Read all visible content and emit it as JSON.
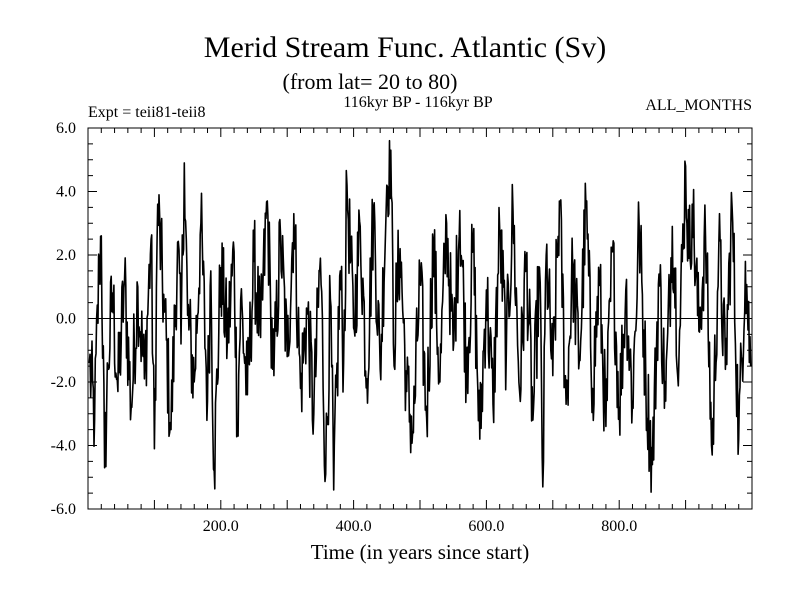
{
  "chart_data": {
    "type": "line",
    "title": "Merid Stream Func. Atlantic (Sv)",
    "subtitle": "(from lat= 20 to 80)",
    "left_label": "Expt = teii81-teii8",
    "center_label": "116kyr BP - 116kyr BP",
    "right_label": "ALL_MONTHS",
    "xlabel": "Time (in years since start)",
    "ylabel": "",
    "xlim": [
      0,
      1000
    ],
    "ylim": [
      -6,
      6
    ],
    "x_ticks": [
      200,
      400,
      600,
      800
    ],
    "x_tick_labels": [
      "200.0",
      "400.0",
      "600.0",
      "800.0"
    ],
    "y_ticks": [
      -6,
      -4,
      -2,
      0,
      2,
      4,
      6
    ],
    "y_tick_labels": [
      "-6.0",
      "-4.0",
      "-2.0",
      "0.0",
      "2.0",
      "4.0",
      "6.0"
    ],
    "reference_line": 0,
    "line_color": "#000000",
    "series": [
      {
        "x": [
          2,
          10,
          17,
          20,
          25,
          30,
          37,
          45,
          55,
          65,
          75,
          85,
          95,
          100,
          105,
          115,
          125,
          135,
          140,
          145,
          150,
          160,
          170,
          180,
          185,
          190,
          200,
          210,
          220,
          225,
          230,
          240,
          250,
          260,
          270,
          275,
          280,
          290,
          300,
          310,
          320,
          330,
          340,
          350,
          358,
          365,
          370,
          380,
          385,
          390,
          400,
          410,
          420,
          430,
          440,
          450,
          456,
          460,
          470,
          480,
          490,
          500,
          510,
          520,
          530,
          540,
          550,
          560,
          570,
          580,
          590,
          600,
          610,
          620,
          630,
          640,
          650,
          660,
          670,
          680,
          685,
          690,
          700,
          710,
          720,
          730,
          740,
          750,
          760,
          770,
          780,
          790,
          800,
          810,
          820,
          830,
          840,
          850,
          860,
          870,
          880,
          890,
          900,
          905,
          910,
          920,
          930,
          940,
          950,
          960,
          970,
          980,
          990,
          998
        ],
        "y": [
          -1.4,
          -3.2,
          1.8,
          2.6,
          -4.7,
          -1.5,
          0.8,
          -2.3,
          1.2,
          -2.8,
          1.0,
          -1.9,
          2.5,
          -4.1,
          3.6,
          0.2,
          -3.5,
          2.4,
          -0.8,
          4.9,
          0.1,
          -2.0,
          3.0,
          -2.6,
          1.5,
          -4.8,
          1.6,
          -0.7,
          2.1,
          -3.3,
          0.6,
          -2.4,
          1.8,
          -0.6,
          3.7,
          0.4,
          -1.8,
          2.6,
          -1.2,
          3.3,
          -2.2,
          0.3,
          -3.0,
          1.9,
          -4.9,
          0.6,
          -5.4,
          1.5,
          -1.4,
          4.2,
          -0.3,
          2.9,
          -1.9,
          3.5,
          -1.6,
          4.2,
          5.3,
          -0.8,
          2.2,
          -2.3,
          -3.6,
          1.3,
          -3.1,
          2.4,
          -2.0,
          3.0,
          -1.0,
          3.4,
          -1.6,
          2.2,
          -3.8,
          0.9,
          -2.7,
          2.8,
          -1.1,
          3.4,
          -2.3,
          1.9,
          -3.2,
          1.6,
          -5.3,
          2.0,
          -1.8,
          3.7,
          -2.7,
          1.6,
          -1.3,
          3.5,
          -2.2,
          1.2,
          -3.4,
          2.1,
          -2.8,
          0.9,
          -2.6,
          3.0,
          -1.9,
          -4.6,
          1.4,
          -2.6,
          2.9,
          -1.2,
          4.8,
          1.9,
          3.6,
          -0.4,
          2.6,
          -4.3,
          2.3,
          -1.6,
          3.5,
          -3.8,
          1.8,
          -1.5
        ]
      }
    ]
  }
}
